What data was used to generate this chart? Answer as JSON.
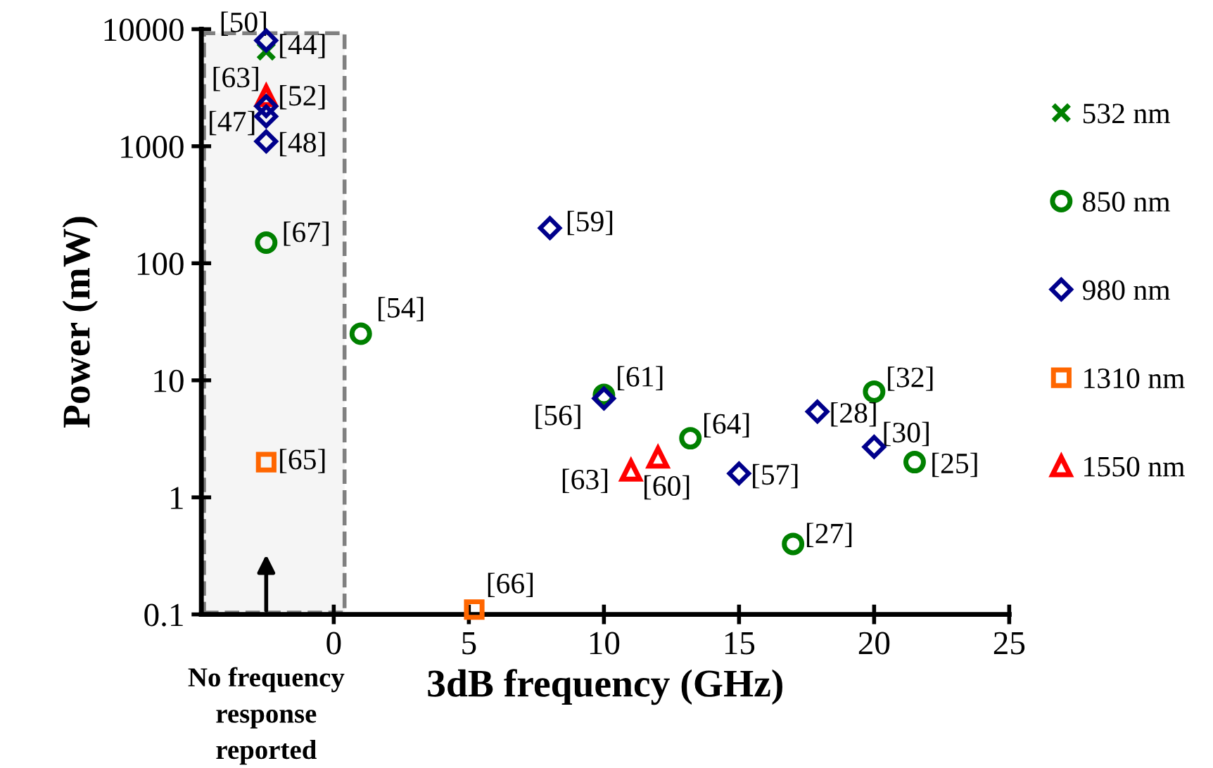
{
  "chart_data": {
    "type": "scatter",
    "xlabel": "3dB frequency (GHz)",
    "ylabel": "Power (mW)",
    "xlim": [
      -4.9,
      25
    ],
    "xticks": [
      0,
      5,
      10,
      15,
      20,
      25
    ],
    "ylim": [
      0.1,
      10000
    ],
    "yticks": [
      0.1,
      1,
      10,
      100,
      1000,
      10000
    ],
    "log": "y",
    "grid": false,
    "legend": "right",
    "bands": [
      {
        "axis": "x",
        "from": -4.8,
        "to": 0.4,
        "color": "#808080"
      }
    ],
    "series": [
      {
        "name": "532 nm",
        "color": "#008000",
        "marker": "cross",
        "x": [
          -2.5
        ],
        "values": [
          6500
        ]
      },
      {
        "name": "850 nm",
        "color": "#008000",
        "marker": "circle",
        "x": [
          -2.5,
          1,
          10,
          13.2,
          20,
          21.5,
          17
        ],
        "values": [
          150,
          25,
          7.5,
          3.2,
          8,
          2,
          0.4
        ]
      },
      {
        "name": "980 nm",
        "color": "#00008b",
        "marker": "diamond",
        "x": [
          -2.5,
          -2.5,
          -2.5,
          -2.5,
          8,
          10,
          15,
          17.9,
          20
        ],
        "values": [
          8000,
          2200,
          1800,
          1100,
          200,
          7,
          1.6,
          5.4,
          2.7
        ]
      },
      {
        "name": "1310 nm",
        "color": "#ff6600",
        "marker": "square",
        "x": [
          -2.5,
          5.2
        ],
        "values": [
          2,
          0.11
        ]
      },
      {
        "name": "1550 nm",
        "color": "#ff0000",
        "marker": "triangle",
        "x": [
          -2.5,
          11,
          12
        ],
        "values": [
          2700,
          1.7,
          2.2
        ]
      }
    ],
    "annotations": [
      {
        "text": "[50]",
        "x": -2.5,
        "y": 8000
      },
      {
        "text": "[44]",
        "x": -2.5,
        "y": 6500
      },
      {
        "text": "[63]",
        "x": -2.5,
        "y": 2700
      },
      {
        "text": "[52]",
        "x": -2.5,
        "y": 2200
      },
      {
        "text": "[47]",
        "x": -2.5,
        "y": 1800
      },
      {
        "text": "[48]",
        "x": -2.5,
        "y": 1100
      },
      {
        "text": "[67]",
        "x": -2.5,
        "y": 150
      },
      {
        "text": "[54]",
        "x": 1,
        "y": 25
      },
      {
        "text": "[59]",
        "x": 8,
        "y": 200
      },
      {
        "text": "[61]",
        "x": 10,
        "y": 7.5
      },
      {
        "text": "[56]",
        "x": 10,
        "y": 7
      },
      {
        "text": "[64]",
        "x": 13.2,
        "y": 3.2
      },
      {
        "text": "[63]",
        "x": 11,
        "y": 1.7
      },
      {
        "text": "[60]",
        "x": 12,
        "y": 2.2
      },
      {
        "text": "[57]",
        "x": 15,
        "y": 1.6
      },
      {
        "text": "[28]",
        "x": 17.9,
        "y": 5.4
      },
      {
        "text": "[32]",
        "x": 20,
        "y": 8
      },
      {
        "text": "[30]",
        "x": 20,
        "y": 2.7
      },
      {
        "text": "[25]",
        "x": 21.5,
        "y": 2
      },
      {
        "text": "[27]",
        "x": 17,
        "y": 0.4
      },
      {
        "text": "[65]",
        "x": -2.5,
        "y": 2
      },
      {
        "text": "[66]",
        "x": 5.2,
        "y": 0.11
      },
      "No frequency\nresponse\nreported"
    ]
  }
}
